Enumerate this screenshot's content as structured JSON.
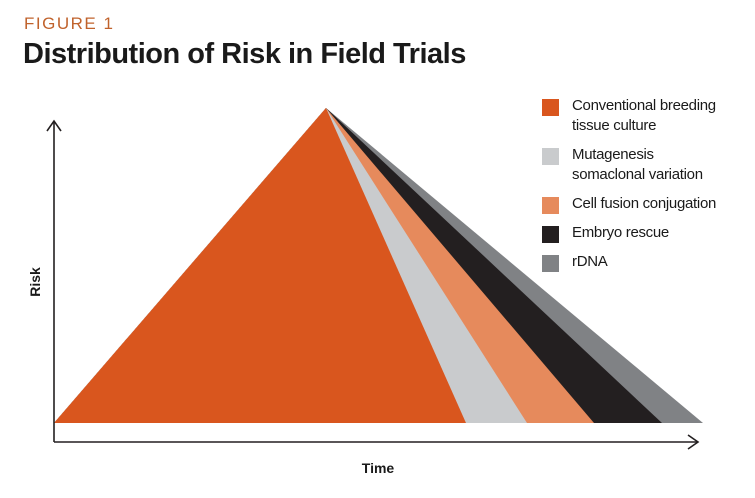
{
  "figure": {
    "label": "FIGURE 1",
    "title": "Distribution of Risk in Field Trials"
  },
  "axes": {
    "x_label": "Time",
    "y_label": "Risk"
  },
  "legend": [
    {
      "lines": [
        "Conventional breeding",
        "tissue culture"
      ],
      "color": "#d9561e"
    },
    {
      "lines": [
        "Mutagenesis",
        "somaclonal variation"
      ],
      "color": "#c9cbcd"
    },
    {
      "lines": [
        "Cell fusion conjugation"
      ],
      "color": "#e68a5c"
    },
    {
      "lines": [
        "Embryo rescue"
      ],
      "color": "#231f20"
    },
    {
      "lines": [
        "rDNA"
      ],
      "color": "#808285"
    }
  ],
  "colors": {
    "axis": "#231f20",
    "label_accent": "#c0622c"
  }
}
